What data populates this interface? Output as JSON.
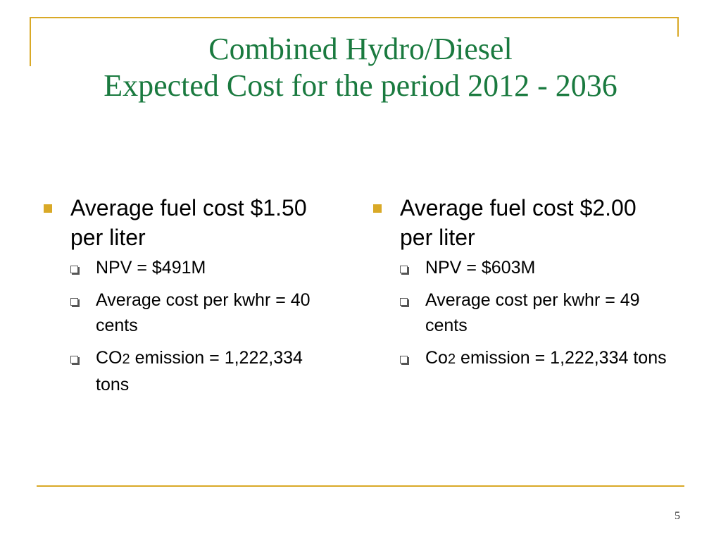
{
  "slide": {
    "title_line1": "Combined Hydro/Diesel",
    "title_line2": "Expected Cost for the period 2012 - 2036",
    "page_number": "5"
  },
  "columns": [
    {
      "heading": "Average fuel cost $1.50 per liter",
      "items": [
        {
          "text": "NPV = $491M"
        },
        {
          "text": "Average cost per kwhr = 40 cents"
        },
        {
          "prefix": "CO",
          "subscript": "2",
          "suffix": " emission = 1,222,334 tons"
        }
      ]
    },
    {
      "heading": "Average fuel cost $2.00 per liter",
      "items": [
        {
          "text": "NPV = $603M"
        },
        {
          "text": "Average cost per kwhr = 49 cents"
        },
        {
          "prefix": "Co",
          "subscript": "2",
          "suffix": " emission = 1,222,334 tons"
        }
      ]
    }
  ],
  "colors": {
    "title": "#1a7a3f",
    "accent": "#d9a927",
    "text": "#000000"
  }
}
